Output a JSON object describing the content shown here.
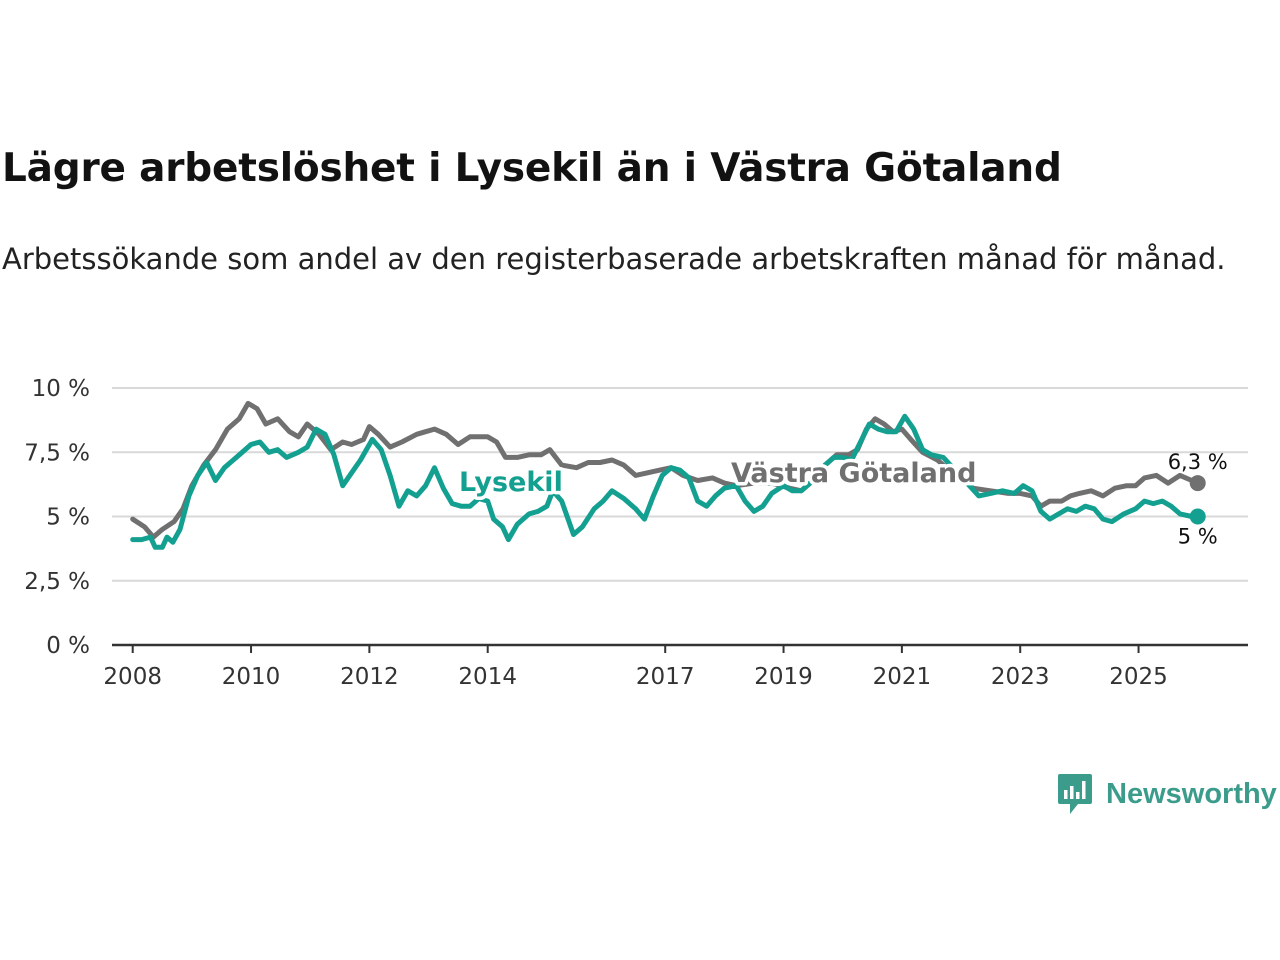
{
  "title": "Lägre arbetslöshet i Lysekil än i Västra Götaland",
  "subtitle": "Arbetssökande som andel av den registerbaserade arbetskraften månad för månad.",
  "brand": {
    "name": "Newsworthy"
  },
  "colors": {
    "lysekil": "#14a091",
    "vastra": "#707070",
    "grid": "#d9d9d9",
    "axis": "#333333"
  },
  "chart_data": {
    "type": "line",
    "title": "Lägre arbetslöshet i Lysekil än i Västra Götaland",
    "xlabel": "",
    "ylabel": "",
    "ylim": [
      0,
      10
    ],
    "xlim": [
      2007.65,
      2026.85
    ],
    "grid": true,
    "yticks": [
      {
        "value": 0,
        "label": "0 %"
      },
      {
        "value": 2.5,
        "label": "2,5 %"
      },
      {
        "value": 5,
        "label": "5 %"
      },
      {
        "value": 7.5,
        "label": "7,5 %"
      },
      {
        "value": 10,
        "label": "10 %"
      }
    ],
    "xticks": [
      {
        "value": 2008,
        "label": "2008"
      },
      {
        "value": 2010,
        "label": "2010"
      },
      {
        "value": 2012,
        "label": "2012"
      },
      {
        "value": 2014,
        "label": "2014"
      },
      {
        "value": 2017,
        "label": "2017"
      },
      {
        "value": 2019,
        "label": "2019"
      },
      {
        "value": 2021,
        "label": "2021"
      },
      {
        "value": 2023,
        "label": "2023"
      },
      {
        "value": 2025,
        "label": "2025"
      }
    ],
    "series": [
      {
        "name": "Västra Götaland",
        "key": "vastra",
        "end_label": "6,3 %",
        "points": [
          [
            2008.0,
            4.9
          ],
          [
            2008.2,
            4.6
          ],
          [
            2008.35,
            4.2
          ],
          [
            2008.5,
            4.5
          ],
          [
            2008.7,
            4.8
          ],
          [
            2008.85,
            5.3
          ],
          [
            2009.0,
            6.2
          ],
          [
            2009.2,
            7.0
          ],
          [
            2009.4,
            7.6
          ],
          [
            2009.6,
            8.4
          ],
          [
            2009.8,
            8.8
          ],
          [
            2009.95,
            9.4
          ],
          [
            2010.1,
            9.2
          ],
          [
            2010.25,
            8.6
          ],
          [
            2010.45,
            8.8
          ],
          [
            2010.65,
            8.3
          ],
          [
            2010.8,
            8.1
          ],
          [
            2010.95,
            8.6
          ],
          [
            2011.15,
            8.2
          ],
          [
            2011.35,
            7.6
          ],
          [
            2011.55,
            7.9
          ],
          [
            2011.7,
            7.8
          ],
          [
            2011.9,
            8.0
          ],
          [
            2012.0,
            8.5
          ],
          [
            2012.15,
            8.2
          ],
          [
            2012.35,
            7.7
          ],
          [
            2012.55,
            7.9
          ],
          [
            2012.8,
            8.2
          ],
          [
            2012.95,
            8.3
          ],
          [
            2013.1,
            8.4
          ],
          [
            2013.3,
            8.2
          ],
          [
            2013.5,
            7.8
          ],
          [
            2013.7,
            8.1
          ],
          [
            2013.9,
            8.1
          ],
          [
            2014.0,
            8.1
          ],
          [
            2014.15,
            7.9
          ],
          [
            2014.3,
            7.3
          ],
          [
            2014.5,
            7.3
          ],
          [
            2014.7,
            7.4
          ],
          [
            2014.9,
            7.4
          ],
          [
            2015.05,
            7.6
          ],
          [
            2015.25,
            7.0
          ],
          [
            2015.5,
            6.9
          ],
          [
            2015.7,
            7.1
          ],
          [
            2015.9,
            7.1
          ],
          [
            2016.1,
            7.2
          ],
          [
            2016.3,
            7.0
          ],
          [
            2016.5,
            6.6
          ],
          [
            2016.7,
            6.7
          ],
          [
            2016.9,
            6.8
          ],
          [
            2017.1,
            6.9
          ],
          [
            2017.3,
            6.6
          ],
          [
            2017.55,
            6.4
          ],
          [
            2017.8,
            6.5
          ],
          [
            2018.0,
            6.3
          ],
          [
            2018.2,
            6.2
          ],
          [
            2018.5,
            6.3
          ],
          [
            2018.8,
            6.3
          ],
          [
            2019.1,
            6.1
          ],
          [
            2019.3,
            6.0
          ],
          [
            2019.5,
            6.4
          ],
          [
            2019.7,
            7.0
          ],
          [
            2019.9,
            7.4
          ],
          [
            2020.1,
            7.4
          ],
          [
            2020.25,
            7.6
          ],
          [
            2020.4,
            8.4
          ],
          [
            2020.55,
            8.8
          ],
          [
            2020.7,
            8.6
          ],
          [
            2020.85,
            8.3
          ],
          [
            2021.0,
            8.4
          ],
          [
            2021.15,
            8.0
          ],
          [
            2021.35,
            7.5
          ],
          [
            2021.6,
            7.2
          ],
          [
            2021.8,
            6.8
          ],
          [
            2022.0,
            6.5
          ],
          [
            2022.2,
            6.1
          ],
          [
            2022.5,
            6.0
          ],
          [
            2022.8,
            5.9
          ],
          [
            2023.0,
            5.9
          ],
          [
            2023.2,
            5.8
          ],
          [
            2023.35,
            5.4
          ],
          [
            2023.5,
            5.6
          ],
          [
            2023.7,
            5.6
          ],
          [
            2023.85,
            5.8
          ],
          [
            2024.0,
            5.9
          ],
          [
            2024.2,
            6.0
          ],
          [
            2024.4,
            5.8
          ],
          [
            2024.6,
            6.1
          ],
          [
            2024.8,
            6.2
          ],
          [
            2024.95,
            6.2
          ],
          [
            2025.1,
            6.5
          ],
          [
            2025.3,
            6.6
          ],
          [
            2025.5,
            6.3
          ],
          [
            2025.7,
            6.6
          ],
          [
            2025.9,
            6.4
          ],
          [
            2026.0,
            6.3
          ]
        ]
      },
      {
        "name": "Lysekil",
        "key": "lysekil",
        "end_label": "5 %",
        "points": [
          [
            2008.0,
            4.1
          ],
          [
            2008.15,
            4.1
          ],
          [
            2008.3,
            4.2
          ],
          [
            2008.38,
            3.8
          ],
          [
            2008.5,
            3.8
          ],
          [
            2008.58,
            4.2
          ],
          [
            2008.68,
            4.0
          ],
          [
            2008.8,
            4.5
          ],
          [
            2008.95,
            5.8
          ],
          [
            2009.1,
            6.6
          ],
          [
            2009.25,
            7.1
          ],
          [
            2009.4,
            6.4
          ],
          [
            2009.55,
            6.9
          ],
          [
            2009.7,
            7.2
          ],
          [
            2009.85,
            7.5
          ],
          [
            2010.0,
            7.8
          ],
          [
            2010.15,
            7.9
          ],
          [
            2010.3,
            7.5
          ],
          [
            2010.45,
            7.6
          ],
          [
            2010.6,
            7.3
          ],
          [
            2010.8,
            7.5
          ],
          [
            2010.95,
            7.7
          ],
          [
            2011.1,
            8.4
          ],
          [
            2011.25,
            8.2
          ],
          [
            2011.4,
            7.4
          ],
          [
            2011.55,
            6.2
          ],
          [
            2011.7,
            6.7
          ],
          [
            2011.85,
            7.2
          ],
          [
            2012.05,
            8.0
          ],
          [
            2012.2,
            7.6
          ],
          [
            2012.35,
            6.6
          ],
          [
            2012.5,
            5.4
          ],
          [
            2012.65,
            6.0
          ],
          [
            2012.8,
            5.8
          ],
          [
            2012.95,
            6.2
          ],
          [
            2013.1,
            6.9
          ],
          [
            2013.25,
            6.1
          ],
          [
            2013.4,
            5.5
          ],
          [
            2013.55,
            5.4
          ],
          [
            2013.7,
            5.4
          ],
          [
            2013.85,
            5.7
          ],
          [
            2014.0,
            5.6
          ],
          [
            2014.1,
            4.9
          ],
          [
            2014.25,
            4.6
          ],
          [
            2014.35,
            4.1
          ],
          [
            2014.5,
            4.7
          ],
          [
            2014.7,
            5.1
          ],
          [
            2014.85,
            5.2
          ],
          [
            2015.0,
            5.4
          ],
          [
            2015.1,
            6.0
          ],
          [
            2015.25,
            5.6
          ],
          [
            2015.45,
            4.3
          ],
          [
            2015.6,
            4.6
          ],
          [
            2015.8,
            5.3
          ],
          [
            2015.95,
            5.6
          ],
          [
            2016.1,
            6.0
          ],
          [
            2016.3,
            5.7
          ],
          [
            2016.5,
            5.3
          ],
          [
            2016.65,
            4.9
          ],
          [
            2016.8,
            5.8
          ],
          [
            2016.95,
            6.6
          ],
          [
            2017.1,
            6.9
          ],
          [
            2017.25,
            6.8
          ],
          [
            2017.4,
            6.5
          ],
          [
            2017.55,
            5.6
          ],
          [
            2017.7,
            5.4
          ],
          [
            2017.85,
            5.8
          ],
          [
            2018.0,
            6.1
          ],
          [
            2018.2,
            6.2
          ],
          [
            2018.35,
            5.6
          ],
          [
            2018.5,
            5.2
          ],
          [
            2018.65,
            5.4
          ],
          [
            2018.8,
            5.9
          ],
          [
            2019.0,
            6.2
          ],
          [
            2019.15,
            6.0
          ],
          [
            2019.3,
            6.0
          ],
          [
            2019.5,
            6.4
          ],
          [
            2019.7,
            7.0
          ],
          [
            2019.85,
            7.3
          ],
          [
            2020.0,
            7.3
          ],
          [
            2020.15,
            7.2
          ],
          [
            2020.3,
            7.9
          ],
          [
            2020.45,
            8.6
          ],
          [
            2020.6,
            8.4
          ],
          [
            2020.75,
            8.3
          ],
          [
            2020.9,
            8.3
          ],
          [
            2021.05,
            8.9
          ],
          [
            2021.2,
            8.4
          ],
          [
            2021.35,
            7.6
          ],
          [
            2021.5,
            7.4
          ],
          [
            2021.7,
            7.3
          ],
          [
            2021.9,
            6.8
          ],
          [
            2022.1,
            6.3
          ],
          [
            2022.3,
            5.8
          ],
          [
            2022.5,
            5.9
          ],
          [
            2022.7,
            6.0
          ],
          [
            2022.9,
            5.9
          ],
          [
            2023.05,
            6.2
          ],
          [
            2023.2,
            6.0
          ],
          [
            2023.35,
            5.2
          ],
          [
            2023.5,
            4.9
          ],
          [
            2023.65,
            5.1
          ],
          [
            2023.8,
            5.3
          ],
          [
            2023.95,
            5.2
          ],
          [
            2024.1,
            5.4
          ],
          [
            2024.25,
            5.3
          ],
          [
            2024.4,
            4.9
          ],
          [
            2024.55,
            4.8
          ],
          [
            2024.75,
            5.1
          ],
          [
            2024.95,
            5.3
          ],
          [
            2025.1,
            5.6
          ],
          [
            2025.25,
            5.5
          ],
          [
            2025.4,
            5.6
          ],
          [
            2025.55,
            5.4
          ],
          [
            2025.7,
            5.1
          ],
          [
            2025.9,
            5.0
          ],
          [
            2026.0,
            5.0
          ]
        ]
      }
    ]
  }
}
